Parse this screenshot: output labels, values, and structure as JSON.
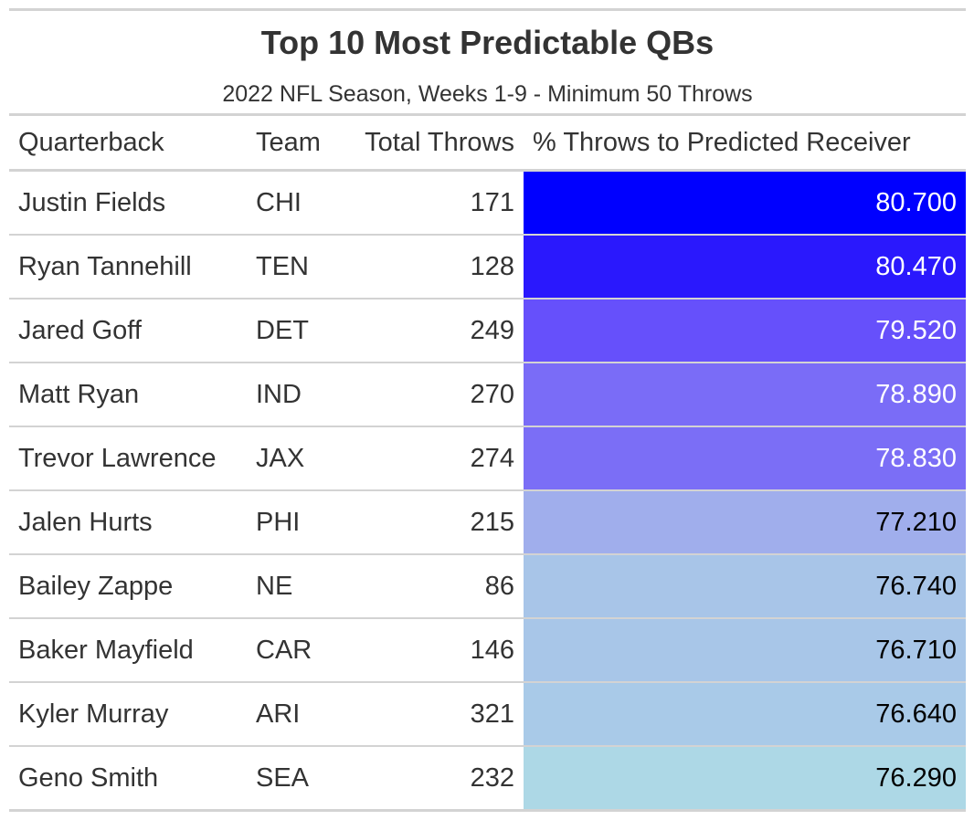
{
  "chart_data": {
    "type": "table",
    "title": "Top 10 Most Predictable QBs",
    "subtitle": "2022 NFL Season, Weeks 1-9 - Minimum 50 Throws",
    "columns": [
      "Quarterback",
      "Team",
      "Total Throws",
      "% Throws to Predicted Receiver"
    ],
    "rows": [
      {
        "qb": "Justin Fields",
        "team": "CHI",
        "throws": "171",
        "pct": "80.700",
        "bg": "#0000ff",
        "fg": "#ffffff"
      },
      {
        "qb": "Ryan Tannehill",
        "team": "TEN",
        "throws": "128",
        "pct": "80.470",
        "bg": "#2a18fd",
        "fg": "#ffffff"
      },
      {
        "qb": "Jared Goff",
        "team": "DET",
        "throws": "249",
        "pct": "79.520",
        "bg": "#6650fb",
        "fg": "#ffffff"
      },
      {
        "qb": "Matt Ryan",
        "team": "IND",
        "throws": "270",
        "pct": "78.890",
        "bg": "#7a6cf7",
        "fg": "#ffffff"
      },
      {
        "qb": "Trevor Lawrence",
        "team": "JAX",
        "throws": "274",
        "pct": "78.830",
        "bg": "#7b6ef6",
        "fg": "#ffffff"
      },
      {
        "qb": "Jalen Hurts",
        "team": "PHI",
        "throws": "215",
        "pct": "77.210",
        "bg": "#a0aeec",
        "fg": "#000000"
      },
      {
        "qb": "Bailey Zappe",
        "team": "NE",
        "throws": "86",
        "pct": "76.740",
        "bg": "#a8c5e8",
        "fg": "#000000"
      },
      {
        "qb": "Baker Mayfield",
        "team": "CAR",
        "throws": "146",
        "pct": "76.710",
        "bg": "#a8c6e8",
        "fg": "#000000"
      },
      {
        "qb": "Kyler Murray",
        "team": "ARI",
        "throws": "321",
        "pct": "76.640",
        "bg": "#a9cae8",
        "fg": "#000000"
      },
      {
        "qb": "Geno Smith",
        "team": "SEA",
        "throws": "232",
        "pct": "76.290",
        "bg": "#add8e6",
        "fg": "#000000"
      }
    ]
  }
}
